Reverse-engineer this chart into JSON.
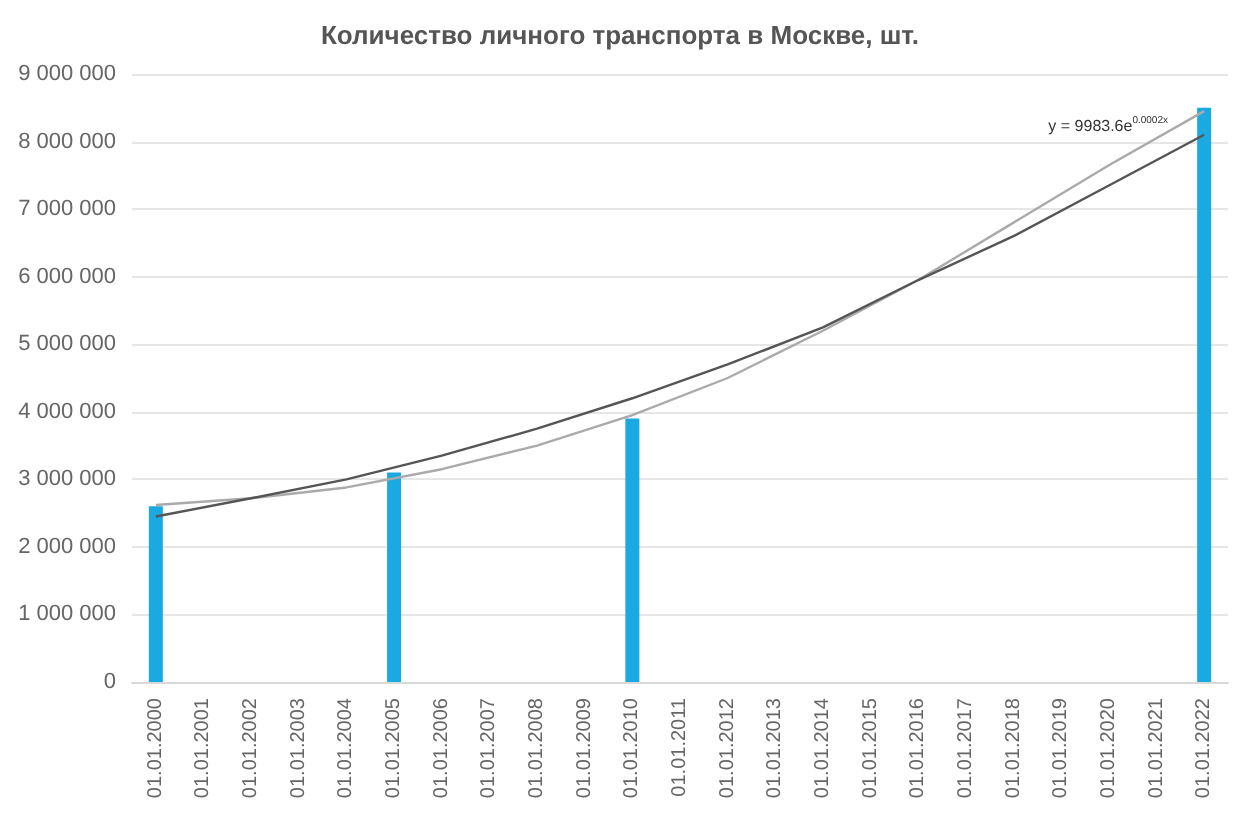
{
  "chart_data": {
    "type": "bar",
    "title": "Количество личного транспорта в Москве, шт.",
    "categories": [
      "01.01.2000",
      "01.01.2001",
      "01.01.2002",
      "01.01.2003",
      "01.01.2004",
      "01.01.2005",
      "01.01.2006",
      "01.01.2007",
      "01.01.2008",
      "01.01.2009",
      "01.01.2010",
      "01.01.2011",
      "01.01.2012",
      "01.01.2013",
      "01.01.2014",
      "01.01.2015",
      "01.01.2016",
      "01.01.2017",
      "01.01.2018",
      "01.01.2019",
      "01.01.2020",
      "01.01.2021",
      "01.01.2022"
    ],
    "series": [
      {
        "color": "#1ba9e1",
        "values": [
          2600000,
          null,
          null,
          null,
          null,
          3100000,
          null,
          null,
          null,
          null,
          3900000,
          null,
          null,
          null,
          null,
          null,
          null,
          null,
          null,
          null,
          null,
          null,
          8500000
        ]
      },
      {
        "type": "line",
        "color": "#aaaaaa",
        "x": [
          "01.01.2000",
          "01.01.2002",
          "01.01.2004",
          "01.01.2006",
          "01.01.2008",
          "01.01.2010",
          "01.01.2012",
          "01.01.2014",
          "01.01.2016",
          "01.01.2018",
          "01.01.2020",
          "01.01.2022"
        ],
        "values": [
          2620000,
          2720000,
          2880000,
          3150000,
          3500000,
          3950000,
          4500000,
          5200000,
          5950000,
          6800000,
          7650000,
          8450000
        ]
      },
      {
        "type": "line",
        "color": "#555555",
        "x": [
          "01.01.2000",
          "01.01.2002",
          "01.01.2004",
          "01.01.2006",
          "01.01.2008",
          "01.01.2010",
          "01.01.2012",
          "01.01.2014",
          "01.01.2016",
          "01.01.2018",
          "01.01.2020",
          "01.01.2022"
        ],
        "values": [
          2450000,
          2720000,
          3000000,
          3350000,
          3750000,
          4200000,
          4700000,
          5250000,
          5950000,
          6600000,
          7350000,
          8100000
        ]
      }
    ],
    "annotations": [
      "y = 9983.6e$^{0.0002x}$"
    ],
    "ylim": [
      0,
      9000000
    ],
    "yticks": [
      {
        "value": 0,
        "label": "0"
      },
      {
        "value": 1000000,
        "label": "1 000 000"
      },
      {
        "value": 2000000,
        "label": "2 000 000"
      },
      {
        "value": 3000000,
        "label": "3 000 000"
      },
      {
        "value": 4000000,
        "label": "4 000 000"
      },
      {
        "value": 5000000,
        "label": "5 000 000"
      },
      {
        "value": 6000000,
        "label": "6 000 000"
      },
      {
        "value": 7000000,
        "label": "7 000 000"
      },
      {
        "value": 8000000,
        "label": "8 000 000"
      },
      {
        "value": 9000000,
        "label": "9 000 000"
      }
    ],
    "grid": "y",
    "marker": "none"
  }
}
